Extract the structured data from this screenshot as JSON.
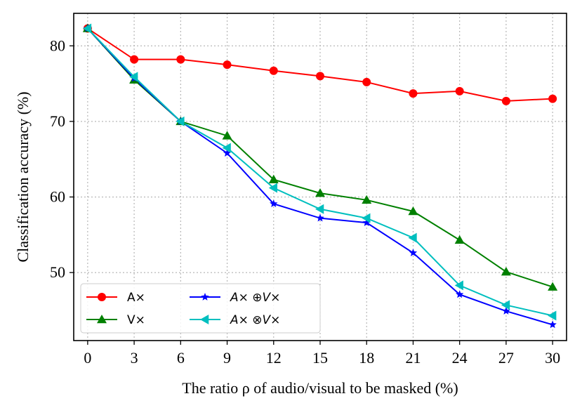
{
  "chart_data": {
    "type": "line",
    "title": "",
    "xlabel": "The ratio ρ of audio/visual to be masked (%)",
    "ylabel": "Classification accuracy (%)",
    "x": [
      0,
      3,
      6,
      9,
      12,
      15,
      18,
      21,
      24,
      27,
      30
    ],
    "xticks": [
      "0",
      "3",
      "6",
      "9",
      "12",
      "15",
      "18",
      "21",
      "24",
      "27",
      "30"
    ],
    "yticks": [
      "50",
      "60",
      "70",
      "80"
    ],
    "xlim": [
      -0.9,
      30.9
    ],
    "ylim": [
      41,
      84.3
    ],
    "grid": true,
    "legend_position": "lower-left",
    "series": [
      {
        "name": "A×",
        "color": "#ff0000",
        "marker": "circle",
        "values": [
          82.3,
          78.2,
          78.2,
          77.5,
          76.7,
          76.0,
          75.2,
          73.7,
          74.0,
          72.7,
          73.0
        ]
      },
      {
        "name": "V×",
        "color": "#008000",
        "marker": "triangle-up",
        "values": [
          82.3,
          75.5,
          70.0,
          68.1,
          62.3,
          60.5,
          59.6,
          58.1,
          54.3,
          50.1,
          48.1
        ]
      },
      {
        "name": "A× ⊕V×",
        "color": "#0000ff",
        "marker": "star",
        "values": [
          82.3,
          75.7,
          70.0,
          65.8,
          59.1,
          57.2,
          56.6,
          52.6,
          47.1,
          44.9,
          43.1
        ]
      },
      {
        "name": "A× ⊗V×",
        "color": "#00bfbf",
        "marker": "triangle-left",
        "values": [
          82.3,
          75.9,
          70.0,
          66.5,
          61.2,
          58.4,
          57.2,
          54.6,
          48.3,
          45.7,
          44.3
        ]
      }
    ]
  }
}
